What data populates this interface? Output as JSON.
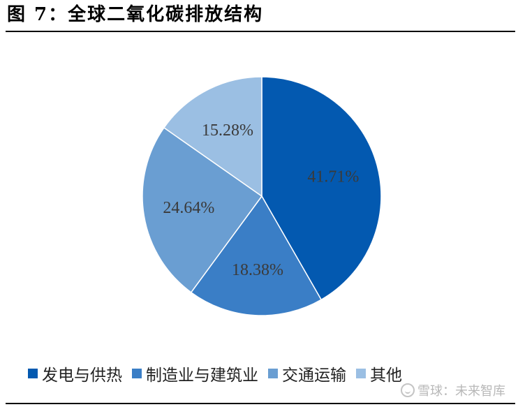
{
  "figure": {
    "title": "图 7：全球二氧化碳排放结构"
  },
  "watermark": {
    "text": "雪球：未来智库",
    "icon": "snowball-logo-icon"
  },
  "chart_data": {
    "type": "pie",
    "title": "图 7：全球二氧化碳排放结构",
    "start_angle_deg": 0,
    "direction": "clockwise",
    "slices": [
      {
        "name": "发电与供热",
        "value": 41.71,
        "label": "41.71%",
        "color": "#0359B0"
      },
      {
        "name": "制造业与建筑业",
        "value": 18.38,
        "label": "18.38%",
        "color": "#3A7EC6"
      },
      {
        "name": "交通运输",
        "value": 24.64,
        "label": "24.64%",
        "color": "#6A9ED2"
      },
      {
        "name": "其他",
        "value": 15.28,
        "label": "15.28%",
        "color": "#9BBFE3"
      }
    ],
    "legend": {
      "position": "bottom",
      "entries": [
        "发电与供热",
        "制造业与建筑业",
        "交通运输",
        "其他"
      ]
    }
  }
}
